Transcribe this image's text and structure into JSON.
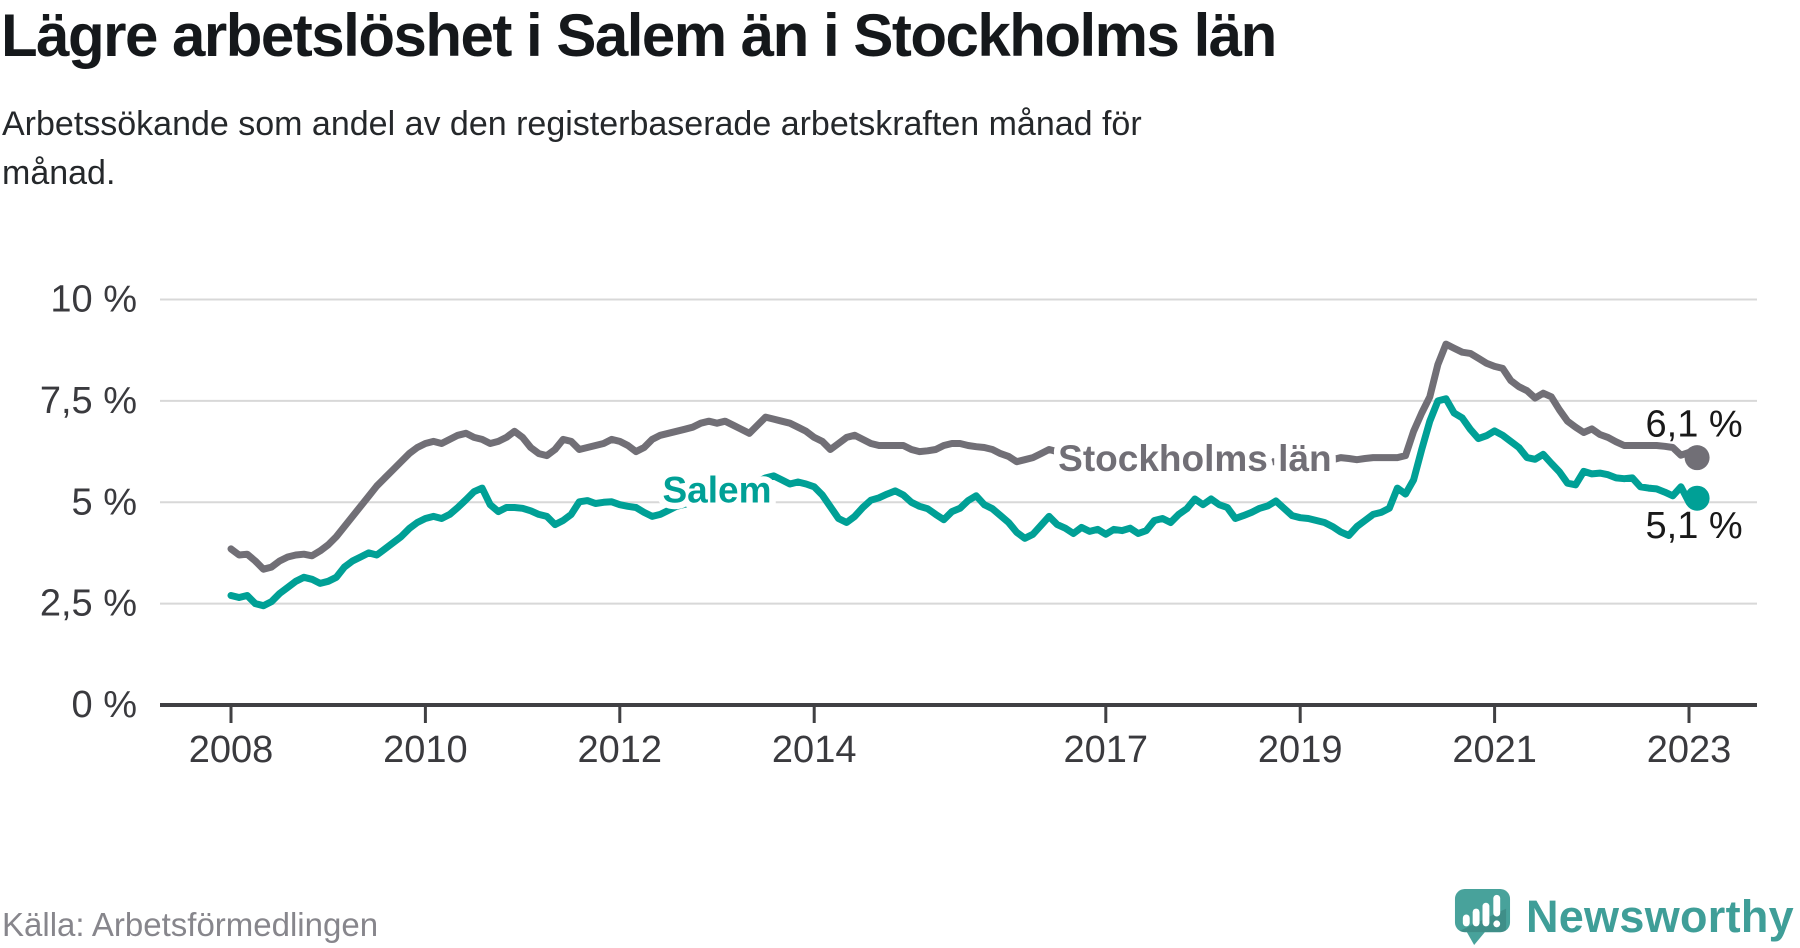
{
  "header": {
    "title": "Lägre arbetslöshet i Salem än i Stockholms län",
    "subtitle": "Arbetssökande som andel av den registerbaserade arbetskraften månad för månad."
  },
  "footer": {
    "source": "Källa: Arbetsförmedlingen",
    "brand": "Newsworthy",
    "brand_icon": "newsworthy-speech-bubble-bar-chart-icon"
  },
  "colors": {
    "salem_line": "#00a096",
    "stockholm_line": "#716f76",
    "end_value_text": "#191919",
    "gridline": "#d8d8d8",
    "axis": "#404043",
    "tick_text": "#3a3a3e",
    "title_text": "#15181b",
    "source_text": "#87868c",
    "brand_teal": "#3f9e98",
    "background": "#ffffff"
  },
  "chart_data": {
    "type": "line",
    "title": "Lägre arbetslöshet i Salem än i Stockholms län",
    "subtitle": "Arbetssökande som andel av den registerbaserade arbetskraften månad för månad.",
    "x_unit": "month",
    "x_start": "2008-01",
    "x_end": "2023-02",
    "x_tick_years": [
      2008,
      2010,
      2012,
      2014,
      2017,
      2019,
      2021,
      2023
    ],
    "x_tick_labels": [
      "2008",
      "2010",
      "2012",
      "2014",
      "2017",
      "2019",
      "2021",
      "2023"
    ],
    "y_tick_values": [
      0,
      2.5,
      5,
      7.5,
      10
    ],
    "y_tick_labels": [
      "0 %",
      "2,5 %",
      "5 %",
      "7,5 %",
      "10 %"
    ],
    "ylim": [
      0,
      10
    ],
    "grid": "horizontal",
    "legend": "inline-labels",
    "series": [
      {
        "name": "Stockholms län",
        "color": "#716f76",
        "end_label": "6,1 %",
        "end_value": 6.1,
        "values": [
          3.85,
          3.7,
          3.72,
          3.55,
          3.35,
          3.4,
          3.55,
          3.65,
          3.7,
          3.72,
          3.68,
          3.8,
          3.95,
          4.15,
          4.4,
          4.65,
          4.9,
          5.15,
          5.4,
          5.6,
          5.8,
          6.0,
          6.2,
          6.35,
          6.45,
          6.5,
          6.45,
          6.55,
          6.65,
          6.7,
          6.6,
          6.55,
          6.45,
          6.5,
          6.6,
          6.75,
          6.6,
          6.35,
          6.2,
          6.15,
          6.3,
          6.55,
          6.5,
          6.3,
          6.35,
          6.4,
          6.45,
          6.55,
          6.5,
          6.4,
          6.25,
          6.35,
          6.55,
          6.65,
          6.7,
          6.75,
          6.8,
          6.85,
          6.95,
          7.0,
          6.95,
          7.0,
          6.9,
          6.8,
          6.7,
          6.9,
          7.1,
          7.05,
          7.0,
          6.95,
          6.85,
          6.75,
          6.6,
          6.5,
          6.3,
          6.45,
          6.6,
          6.65,
          6.55,
          6.45,
          6.4,
          6.4,
          6.4,
          6.4,
          6.3,
          6.25,
          6.27,
          6.3,
          6.4,
          6.45,
          6.45,
          6.4,
          6.37,
          6.35,
          6.3,
          6.2,
          6.13,
          6.0,
          6.05,
          6.1,
          6.2,
          6.3,
          6.25,
          6.2,
          6.15,
          6.1,
          6.1,
          6.15,
          6.2,
          6.15,
          6.1,
          6.1,
          6.15,
          6.2,
          6.15,
          6.1,
          6.05,
          6.0,
          6.0,
          6.05,
          6.0,
          5.95,
          5.95,
          6.0,
          6.05,
          6.1,
          6.05,
          6.0,
          6.0,
          6.0,
          6.05,
          6.1,
          6.05,
          6.05,
          6.08,
          6.05,
          6.05,
          6.1,
          6.08,
          6.05,
          6.08,
          6.1,
          6.1,
          6.1,
          6.1,
          6.15,
          6.75,
          7.2,
          7.6,
          8.4,
          8.9,
          8.8,
          8.7,
          8.67,
          8.55,
          8.43,
          8.35,
          8.3,
          8.0,
          7.85,
          7.75,
          7.57,
          7.69,
          7.6,
          7.28,
          7.0,
          6.85,
          6.72,
          6.81,
          6.67,
          6.6,
          6.49,
          6.4,
          6.4,
          6.4,
          6.4,
          6.4,
          6.38,
          6.35,
          6.16,
          6.23,
          6.1
        ]
      },
      {
        "name": "Salem",
        "color": "#00a096",
        "end_label": "5,1 %",
        "end_value": 5.1,
        "values": [
          2.7,
          2.65,
          2.7,
          2.5,
          2.45,
          2.55,
          2.75,
          2.9,
          3.05,
          3.15,
          3.1,
          3.0,
          3.05,
          3.15,
          3.4,
          3.55,
          3.65,
          3.75,
          3.7,
          3.85,
          4.0,
          4.15,
          4.35,
          4.5,
          4.6,
          4.65,
          4.6,
          4.7,
          4.87,
          5.06,
          5.26,
          5.35,
          4.94,
          4.77,
          4.87,
          4.87,
          4.85,
          4.79,
          4.7,
          4.65,
          4.45,
          4.55,
          4.7,
          5.01,
          5.04,
          4.97,
          5.0,
          5.01,
          4.94,
          4.9,
          4.87,
          4.75,
          4.65,
          4.7,
          4.8,
          4.9,
          4.95,
          5.0,
          5.05,
          5.1,
          5.15,
          5.25,
          5.3,
          5.4,
          5.45,
          5.5,
          5.6,
          5.65,
          5.55,
          5.45,
          5.5,
          5.45,
          5.38,
          5.18,
          4.89,
          4.6,
          4.5,
          4.65,
          4.87,
          5.05,
          5.11,
          5.2,
          5.28,
          5.18,
          5.0,
          4.9,
          4.84,
          4.7,
          4.57,
          4.77,
          4.85,
          5.04,
          5.16,
          4.94,
          4.84,
          4.67,
          4.5,
          4.26,
          4.11,
          4.21,
          4.43,
          4.65,
          4.45,
          4.36,
          4.23,
          4.38,
          4.28,
          4.33,
          4.21,
          4.33,
          4.3,
          4.36,
          4.23,
          4.3,
          4.55,
          4.6,
          4.5,
          4.7,
          4.84,
          5.08,
          4.94,
          5.08,
          4.94,
          4.87,
          4.6,
          4.67,
          4.75,
          4.85,
          4.91,
          5.03,
          4.85,
          4.67,
          4.62,
          4.6,
          4.55,
          4.5,
          4.4,
          4.27,
          4.18,
          4.4,
          4.55,
          4.7,
          4.75,
          4.85,
          5.35,
          5.2,
          5.55,
          6.3,
          7.0,
          7.5,
          7.55,
          7.2,
          7.08,
          6.8,
          6.57,
          6.64,
          6.76,
          6.65,
          6.5,
          6.35,
          6.1,
          6.06,
          6.18,
          5.96,
          5.75,
          5.47,
          5.43,
          5.76,
          5.7,
          5.72,
          5.68,
          5.6,
          5.58,
          5.6,
          5.38,
          5.35,
          5.33,
          5.25,
          5.16,
          5.38,
          5.0,
          5.1
        ]
      }
    ]
  }
}
